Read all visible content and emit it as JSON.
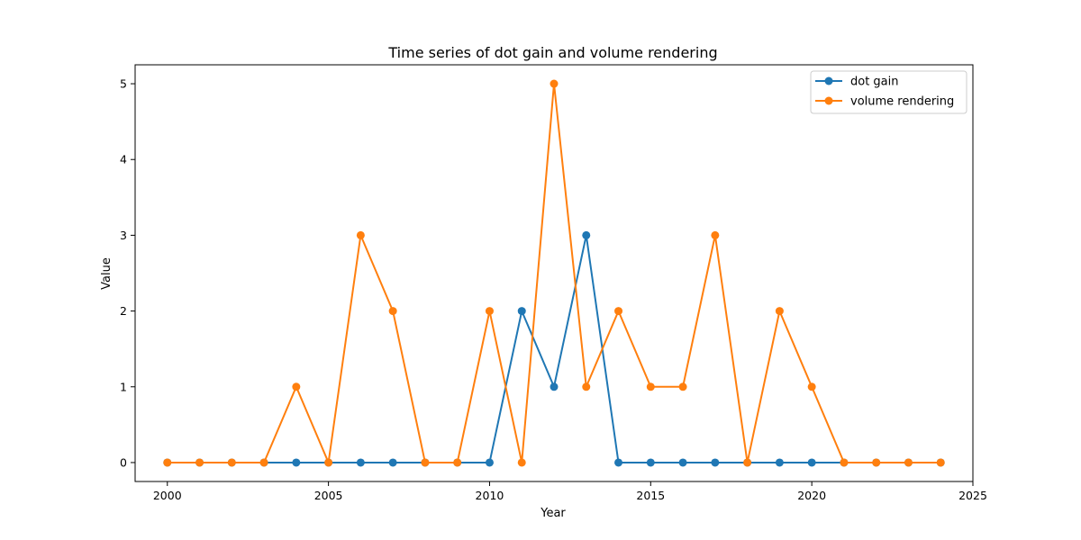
{
  "chart_data": {
    "type": "line",
    "title": "Time series of dot gain and volume rendering",
    "xlabel": "Year",
    "ylabel": "Value",
    "x": [
      2000,
      2001,
      2002,
      2003,
      2004,
      2005,
      2006,
      2007,
      2008,
      2009,
      2010,
      2011,
      2012,
      2013,
      2014,
      2015,
      2016,
      2017,
      2018,
      2019,
      2020,
      2021,
      2022,
      2023,
      2024
    ],
    "xlim": [
      1999,
      2025
    ],
    "ylim": [
      -0.25,
      5.25
    ],
    "xticks": [
      2000,
      2005,
      2010,
      2015,
      2020,
      2025
    ],
    "yticks": [
      0,
      1,
      2,
      3,
      4,
      5
    ],
    "grid": false,
    "legend": "top-right",
    "series": [
      {
        "name": "dot gain",
        "color": "#1f77b4",
        "values": [
          0,
          0,
          0,
          0,
          0,
          0,
          0,
          0,
          0,
          0,
          0,
          2,
          1,
          3,
          0,
          0,
          0,
          0,
          0,
          0,
          0,
          0,
          0,
          0,
          0
        ]
      },
      {
        "name": "volume rendering",
        "color": "#ff7f0e",
        "values": [
          0,
          0,
          0,
          0,
          1,
          0,
          3,
          2,
          0,
          0,
          2,
          0,
          5,
          1,
          2,
          1,
          1,
          3,
          0,
          2,
          1,
          0,
          0,
          0,
          0
        ]
      }
    ]
  }
}
